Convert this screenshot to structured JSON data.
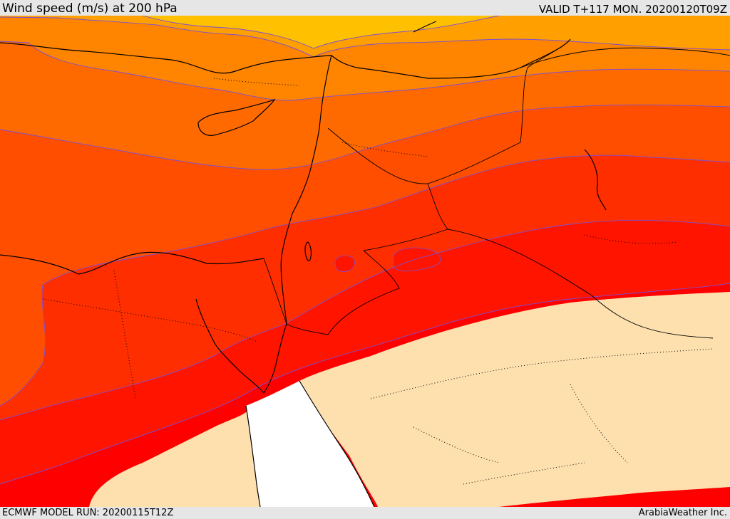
{
  "header": {
    "title": "Wind speed (m/s) at 200 hPa",
    "valid": "VALID T+117 MON. 20200120T09Z"
  },
  "footer": {
    "model_run": "ECMWF MODEL RUN: 20200115T12Z",
    "credit": "ArabiaWeather Inc."
  },
  "legend_colors": {
    "band_1": "#ffc000",
    "band_2": "#ffa000",
    "band_3": "#ff8400",
    "band_4": "#ff6a00",
    "band_5": "#ff4e00",
    "band_6": "#ff2e00",
    "band_7": "#ff1400",
    "band_8": "#ff0000",
    "low_wind": "#fde0ae",
    "sea": "#ffffff",
    "contour": "#7a4fd8"
  }
}
